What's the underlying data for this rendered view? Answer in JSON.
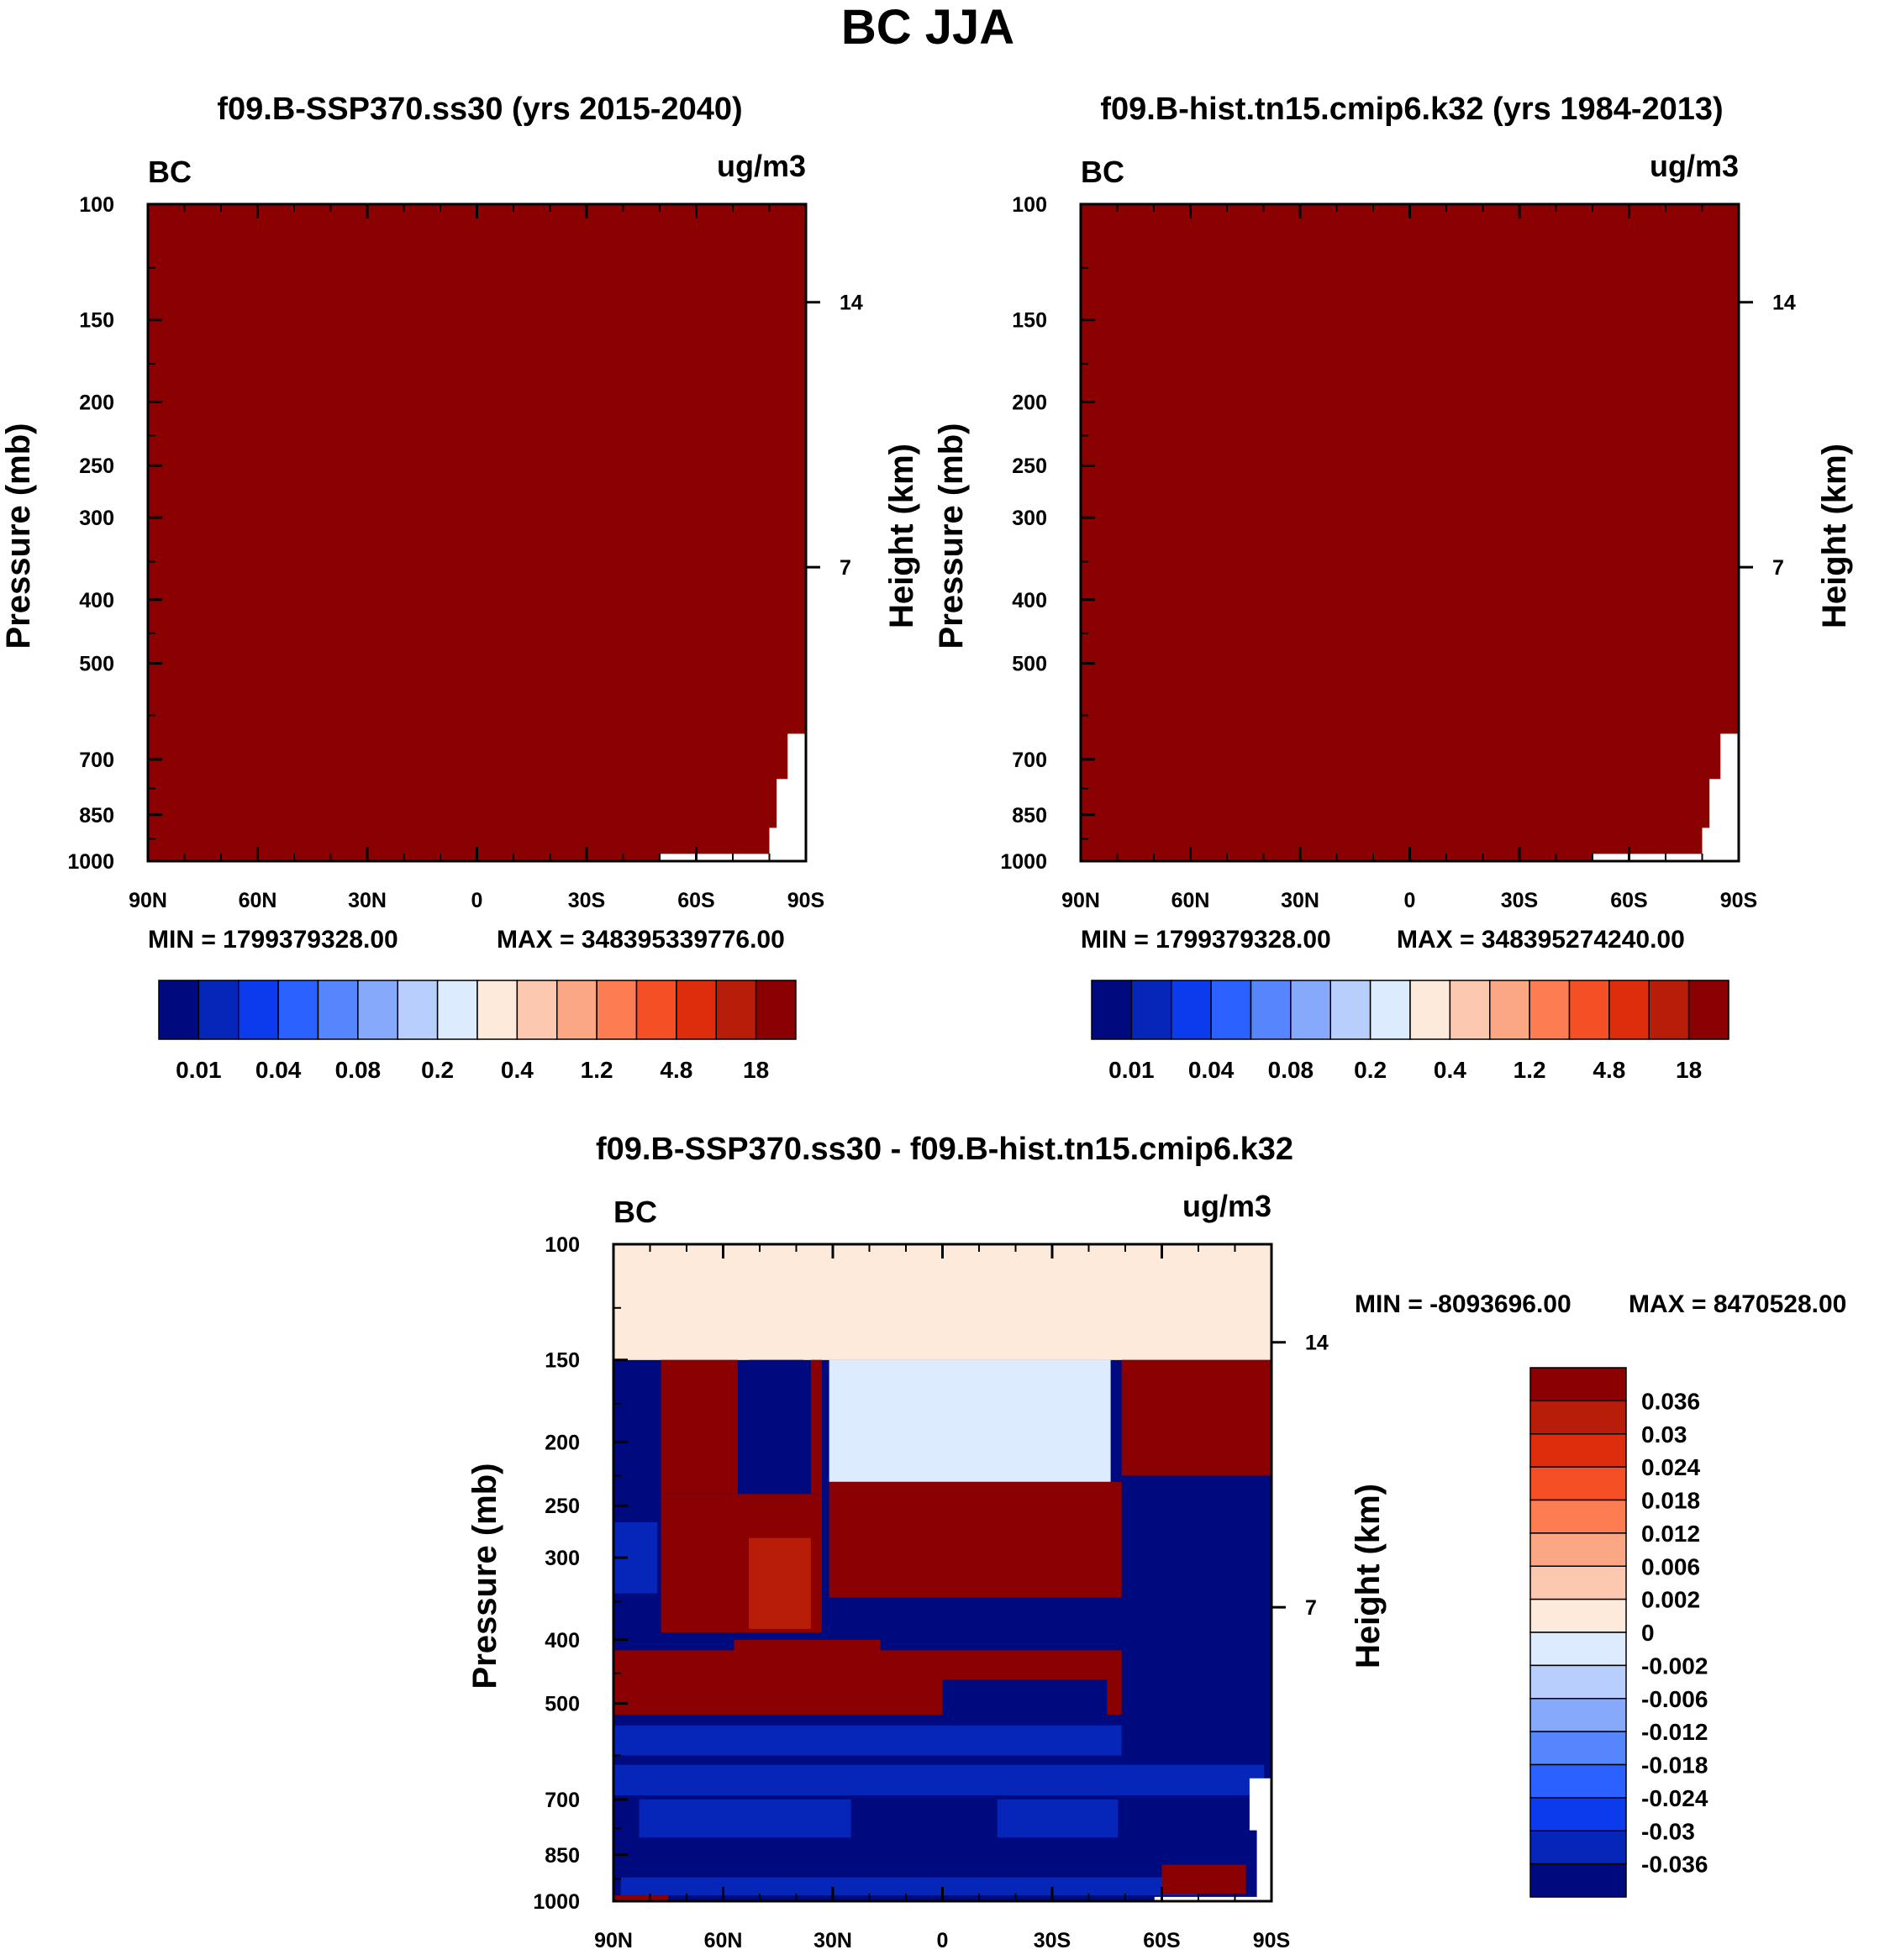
{
  "figure_title": "BC JJA",
  "chart_data": [
    {
      "type": "heatmap",
      "id": "panel1",
      "title": "f09.B-SSP370.ss30 (yrs 2015-2040)",
      "variable": "BC",
      "units": "ug/m3",
      "ylabel": "Pressure (mb)",
      "ylabel_right": "Height (km)",
      "x_ticks": [
        "90N",
        "60N",
        "30N",
        "0",
        "30S",
        "60S",
        "90S"
      ],
      "x_range": [
        90,
        -90
      ],
      "y_ticks": [
        100,
        150,
        200,
        250,
        300,
        400,
        500,
        700,
        850,
        1000
      ],
      "y_range": [
        100,
        1000
      ],
      "right_ticks": [
        "14",
        "7"
      ],
      "right_tick_pressures": [
        141,
        357
      ],
      "fill": "#8b0000",
      "min_label": "MIN = 1799379328.00",
      "max_label": "MAX = 348395339776.00",
      "colorbar_colors": [
        "#000a7f",
        "#0526b8",
        "#0c3bee",
        "#2a61ff",
        "#5785fb",
        "#86a9fb",
        "#b8cefc",
        "#dcebfd",
        "#fdeadb",
        "#fdc8b0",
        "#fca783",
        "#fb7d51",
        "#f54f25",
        "#de2d0d",
        "#b81d0a",
        "#8b0000"
      ],
      "colorbar_labels": [
        "0.01",
        "0.04",
        "0.08",
        "0.2",
        "0.4",
        "1.2",
        "4.8",
        "18"
      ]
    },
    {
      "type": "heatmap",
      "id": "panel2",
      "title": "f09.B-hist.tn15.cmip6.k32 (yrs 1984-2013)",
      "variable": "BC",
      "units": "ug/m3",
      "ylabel": "Pressure (mb)",
      "ylabel_right": "Height (km)",
      "x_ticks": [
        "90N",
        "60N",
        "30N",
        "0",
        "30S",
        "60S",
        "90S"
      ],
      "x_range": [
        90,
        -90
      ],
      "y_ticks": [
        100,
        150,
        200,
        250,
        300,
        400,
        500,
        700,
        850,
        1000
      ],
      "y_range": [
        100,
        1000
      ],
      "right_ticks": [
        "14",
        "7"
      ],
      "right_tick_pressures": [
        141,
        357
      ],
      "fill": "#8b0000",
      "min_label": "MIN = 1799379328.00",
      "max_label": "MAX = 348395274240.00",
      "colorbar_colors": [
        "#000a7f",
        "#0526b8",
        "#0c3bee",
        "#2a61ff",
        "#5785fb",
        "#86a9fb",
        "#b8cefc",
        "#dcebfd",
        "#fdeadb",
        "#fdc8b0",
        "#fca783",
        "#fb7d51",
        "#f54f25",
        "#de2d0d",
        "#b81d0a",
        "#8b0000"
      ],
      "colorbar_labels": [
        "0.01",
        "0.04",
        "0.08",
        "0.2",
        "0.4",
        "1.2",
        "4.8",
        "18"
      ]
    },
    {
      "type": "heatmap",
      "id": "panel3",
      "title": "f09.B-SSP370.ss30 - f09.B-hist.tn15.cmip6.k32",
      "variable": "BC",
      "units": "ug/m3",
      "ylabel": "Pressure (mb)",
      "ylabel_right": "Height (km)",
      "x_ticks": [
        "90N",
        "60N",
        "30N",
        "0",
        "30S",
        "60S",
        "90S"
      ],
      "x_range": [
        90,
        -90
      ],
      "y_ticks": [
        100,
        150,
        200,
        250,
        300,
        400,
        500,
        700,
        850,
        1000
      ],
      "y_range": [
        100,
        1000
      ],
      "right_ticks": [
        "14",
        "7"
      ],
      "right_tick_pressures": [
        141,
        357
      ],
      "min_label": "MIN = -8093696.00",
      "max_label": "MAX = 8470528.00",
      "colorbar_colors": [
        "#8b0000",
        "#b81d0a",
        "#de2d0d",
        "#f54f25",
        "#fb7d51",
        "#fca783",
        "#fdc8b0",
        "#fdeadb",
        "#dcebfd",
        "#b8cefc",
        "#86a9fb",
        "#5785fb",
        "#2a61ff",
        "#0c3bee",
        "#0526b8",
        "#000a7f"
      ],
      "colorbar_labels": [
        "0.036",
        "0.03",
        "0.024",
        "0.018",
        "0.012",
        "0.006",
        "0.002",
        "0",
        "-0.002",
        "-0.006",
        "-0.012",
        "-0.018",
        "-0.024",
        "-0.03",
        "-0.036"
      ],
      "pattern_colors": {
        "dark_red": "#8b0000",
        "mid_red": "#b81d0a",
        "light_peach": "#fdeadb",
        "light_blue": "#dcebfd",
        "navy": "#000a7f",
        "blue": "#0526b8"
      }
    }
  ]
}
